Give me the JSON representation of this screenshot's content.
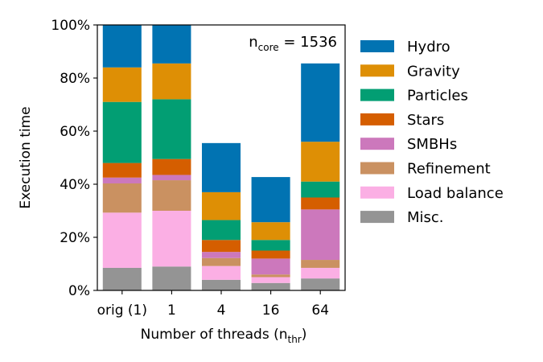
{
  "chart_data": {
    "type": "bar",
    "stacked": true,
    "categories": [
      "orig (1)",
      "1",
      "4",
      "16",
      "64"
    ],
    "xlabel": {
      "main": "Number of threads (n",
      "sub": "thr",
      "close": ")"
    },
    "ylabel": "Execution time",
    "ylim": [
      0,
      100
    ],
    "yticks": [
      "0%",
      "20%",
      "40%",
      "60%",
      "80%",
      "100%"
    ],
    "annotation": {
      "main": "n",
      "sub": "core",
      "rest": " = 1536"
    },
    "legend_position": "right",
    "series": [
      {
        "name": "Misc.",
        "color": "#949494",
        "values": [
          8.5,
          9.0,
          4.0,
          2.8,
          4.5
        ]
      },
      {
        "name": "Load balance",
        "color": "#fbafe4",
        "values": [
          20.8,
          21.0,
          5.2,
          2.2,
          4.0
        ]
      },
      {
        "name": "Refinement",
        "color": "#ca9161",
        "values": [
          11.0,
          11.5,
          3.0,
          1.0,
          3.0
        ]
      },
      {
        "name": "SMBHs",
        "color": "#cc78bc",
        "values": [
          2.2,
          2.0,
          2.3,
          6.0,
          19.0
        ]
      },
      {
        "name": "Stars",
        "color": "#d55e00",
        "values": [
          5.5,
          6.0,
          4.5,
          3.0,
          4.5
        ]
      },
      {
        "name": "Particles",
        "color": "#029e73",
        "values": [
          23.0,
          22.5,
          7.5,
          4.0,
          6.0
        ]
      },
      {
        "name": "Gravity",
        "color": "#de8f05",
        "values": [
          13.0,
          13.5,
          10.5,
          6.7,
          15.0
        ]
      },
      {
        "name": "Hydro",
        "color": "#0173b2",
        "values": [
          16.0,
          14.5,
          18.5,
          17.0,
          29.5
        ]
      }
    ]
  }
}
